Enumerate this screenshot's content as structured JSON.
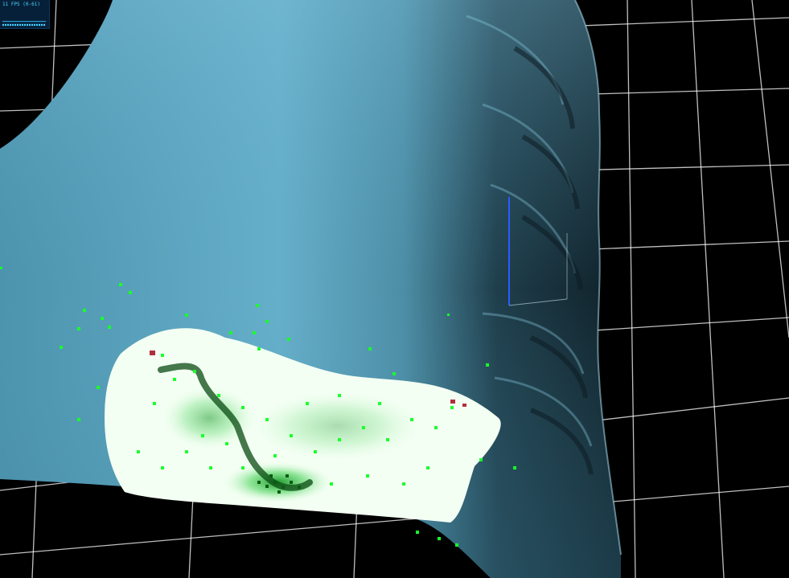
{
  "stats": {
    "fps_label": "11 FPS (0-61)"
  },
  "scene": {
    "background_color": "#000000",
    "grid_color": "#ffffff",
    "fluid_surface_color": "#5aa6c2",
    "fluid_shadow_color": "#17313d",
    "particle_green": "#19ff2a",
    "particle_white": "#ffffff",
    "axis_color": "#2a5cff"
  }
}
